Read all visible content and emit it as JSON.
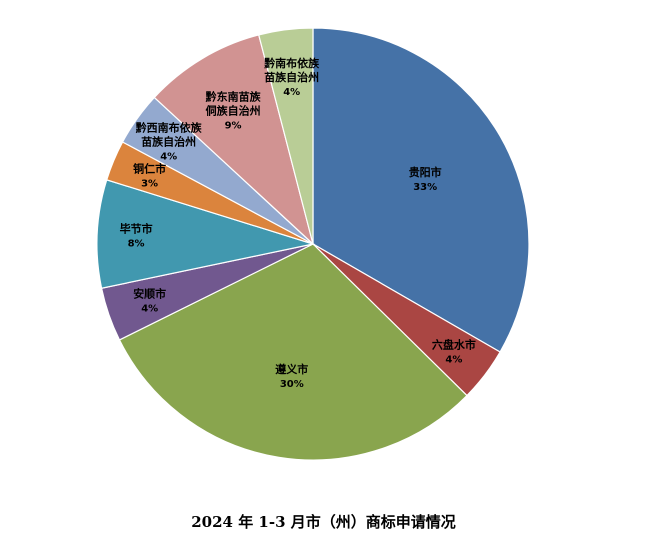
{
  "chart_data": {
    "type": "pie",
    "title": "2024 年 1-3 月市（州）商标申请情况",
    "slices": [
      {
        "name": "贵阳市",
        "name_lines": [
          "贵阳市"
        ],
        "value": 33,
        "label": "33%",
        "color": "#4572a7"
      },
      {
        "name": "六盘水市",
        "name_lines": [
          "六盘水市"
        ],
        "value": 4,
        "label": "4%",
        "color": "#aa4643"
      },
      {
        "name": "遵义市",
        "name_lines": [
          "遵义市"
        ],
        "value": 30,
        "label": "30%",
        "color": "#89a54e"
      },
      {
        "name": "安顺市",
        "name_lines": [
          "安顺市"
        ],
        "value": 4,
        "label": "4%",
        "color": "#71588f"
      },
      {
        "name": "毕节市",
        "name_lines": [
          "毕节市"
        ],
        "value": 8,
        "label": "8%",
        "color": "#4198af"
      },
      {
        "name": "铜仁市",
        "name_lines": [
          "铜仁市"
        ],
        "value": 3,
        "label": "3%",
        "color": "#db843d"
      },
      {
        "name": "黔西南布依族苗族自治州",
        "name_lines": [
          "黔西南布依族",
          "苗族自治州"
        ],
        "value": 4,
        "label": "4%",
        "color": "#93a9cf"
      },
      {
        "name": "黔东南苗族侗族自治州",
        "name_lines": [
          "黔东南苗族",
          "侗族自治州"
        ],
        "value": 9,
        "label": "9%",
        "color": "#d19392"
      },
      {
        "name": "黔南布依族苗族自治州",
        "name_lines": [
          "黔南布依族",
          "苗族自治州"
        ],
        "value": 4,
        "label": "4%",
        "color": "#b9cd96"
      }
    ],
    "start": "12 o'clock",
    "direction": "clockwise",
    "legend": "none"
  }
}
